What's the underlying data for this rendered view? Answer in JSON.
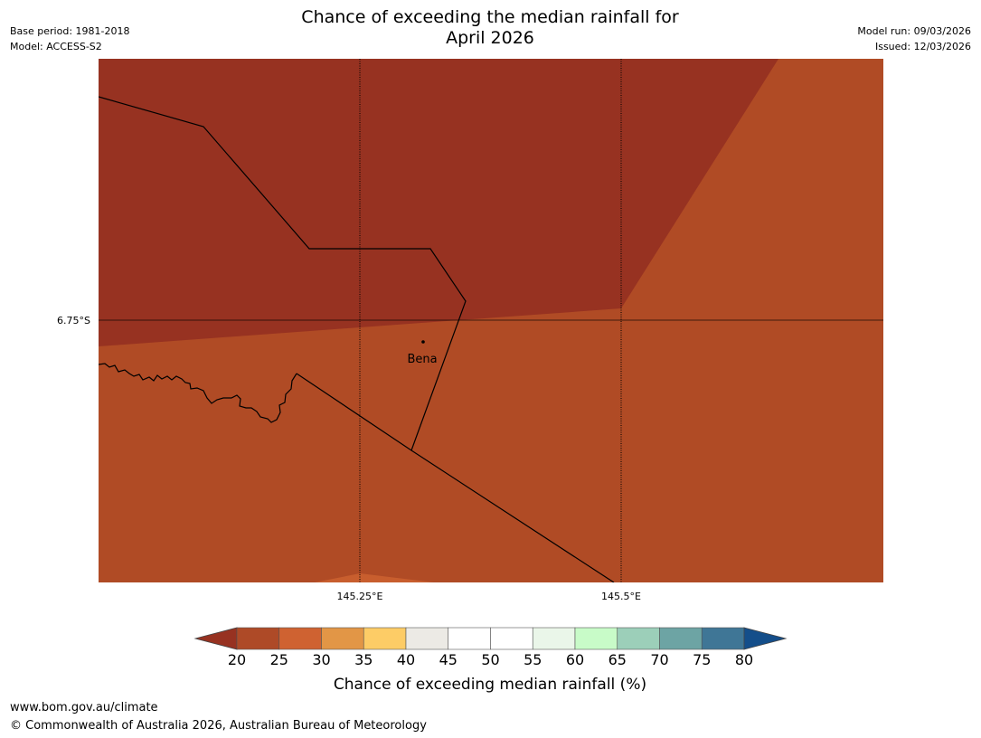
{
  "header": {
    "title_line1": "Chance of exceeding the median rainfall for",
    "title_line2": "April 2026",
    "base_period": "Base period: 1981-2018",
    "model": "Model: ACCESS-S2",
    "model_run": "Model run: 09/03/2026",
    "issued": "Issued: 12/03/2026"
  },
  "map": {
    "place": {
      "name": "Bena"
    },
    "gridlines": {
      "latitude_label": "6.75°S",
      "longitude_labels": [
        "145.25°E",
        "145.5°E"
      ]
    },
    "region_colors": {
      "dark_region": "#973221",
      "main_region": "#b04b25",
      "light_patch": "#c85e2e"
    }
  },
  "colorbar": {
    "title": "Chance of exceeding median rainfall (%)",
    "ticks": [
      "20",
      "25",
      "30",
      "35",
      "40",
      "45",
      "50",
      "55",
      "60",
      "65",
      "70",
      "75",
      "80"
    ],
    "under_color": "#973221",
    "over_color": "#144e8a",
    "colors": [
      "#ae4a27",
      "#cf6231",
      "#e29646",
      "#fdcc66",
      "#eceae5",
      "#ffffff",
      "#ffffff",
      "#eaf6e9",
      "#c8fbc8",
      "#9ccfb9",
      "#6da4a4",
      "#3f7696"
    ]
  },
  "footer": {
    "url": "www.bom.gov.au/climate",
    "copyright": "© Commonwealth of Australia 2026, Australian Bureau of Meteorology"
  }
}
